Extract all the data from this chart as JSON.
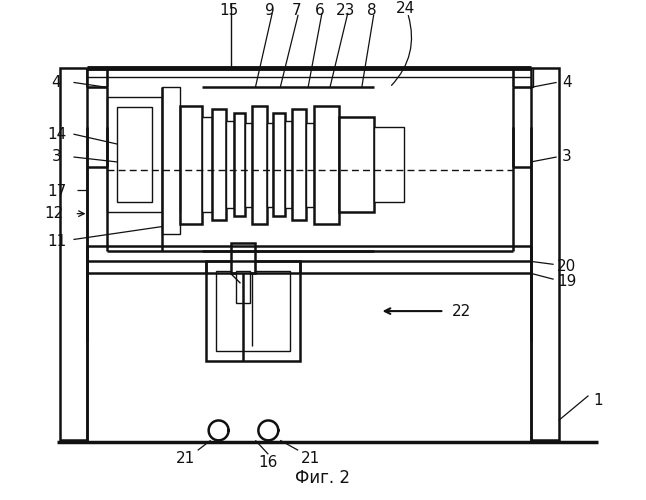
{
  "title": "Фиг. 2",
  "bg": "#ffffff",
  "lc": "#111111",
  "lw_main": 1.8,
  "lw_thin": 1.0,
  "lw_leader": 0.9
}
